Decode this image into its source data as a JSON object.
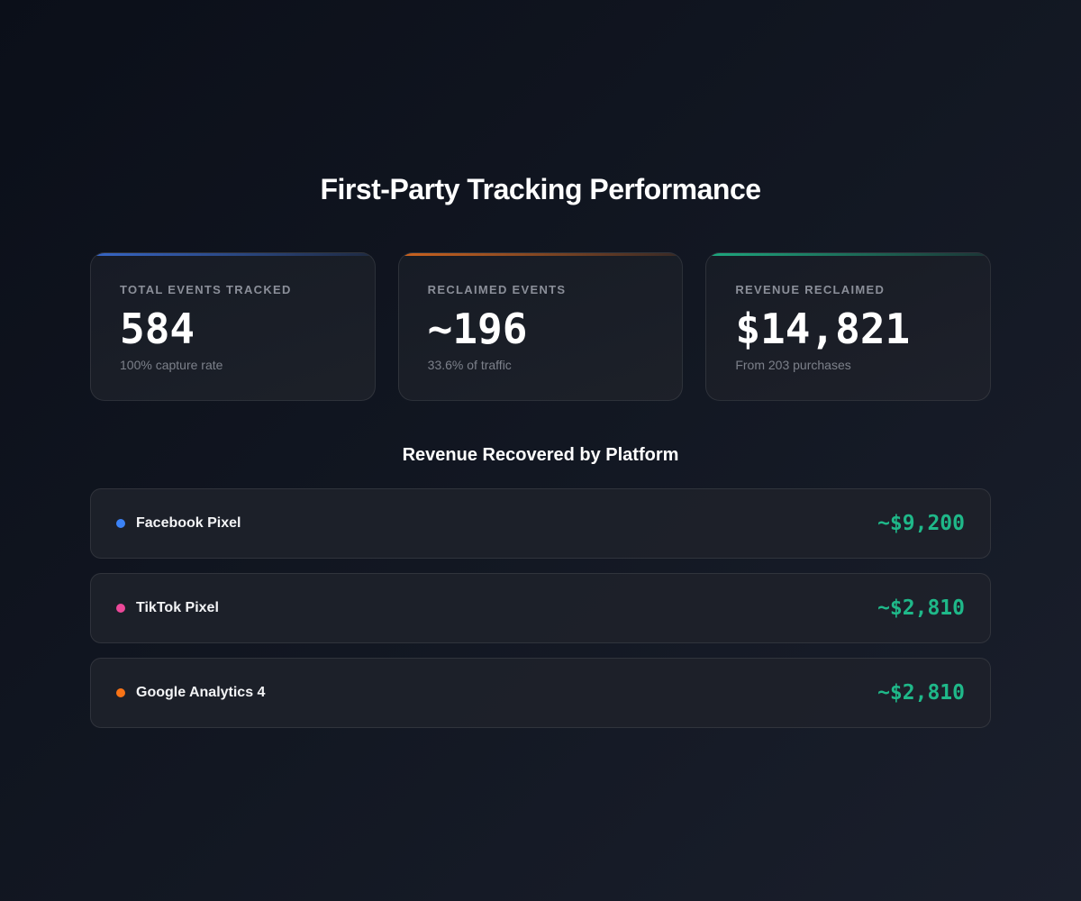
{
  "header": {
    "title": "First-Party Tracking Performance"
  },
  "stats": [
    {
      "label": "TOTAL EVENTS TRACKED",
      "value": "584",
      "subtext": "100% capture rate",
      "accent_color": "#3b6fd9"
    },
    {
      "label": "RECLAIMED EVENTS",
      "value": "~196",
      "subtext": "33.6% of traffic",
      "accent_color": "#e06b1f"
    },
    {
      "label": "REVENUE RECLAIMED",
      "value": "$14,821",
      "subtext": "From 203 purchases",
      "accent_color": "#1fb889"
    }
  ],
  "platforms_section": {
    "title": "Revenue Recovered by Platform",
    "items": [
      {
        "name": "Facebook Pixel",
        "value": "~$9,200",
        "dot_color": "#3b82f6"
      },
      {
        "name": "TikTok Pixel",
        "value": "~$2,810",
        "dot_color": "#ec4899"
      },
      {
        "name": "Google Analytics 4",
        "value": "~$2,810",
        "dot_color": "#f97316"
      }
    ]
  },
  "colors": {
    "value_green": "#1fb889"
  }
}
